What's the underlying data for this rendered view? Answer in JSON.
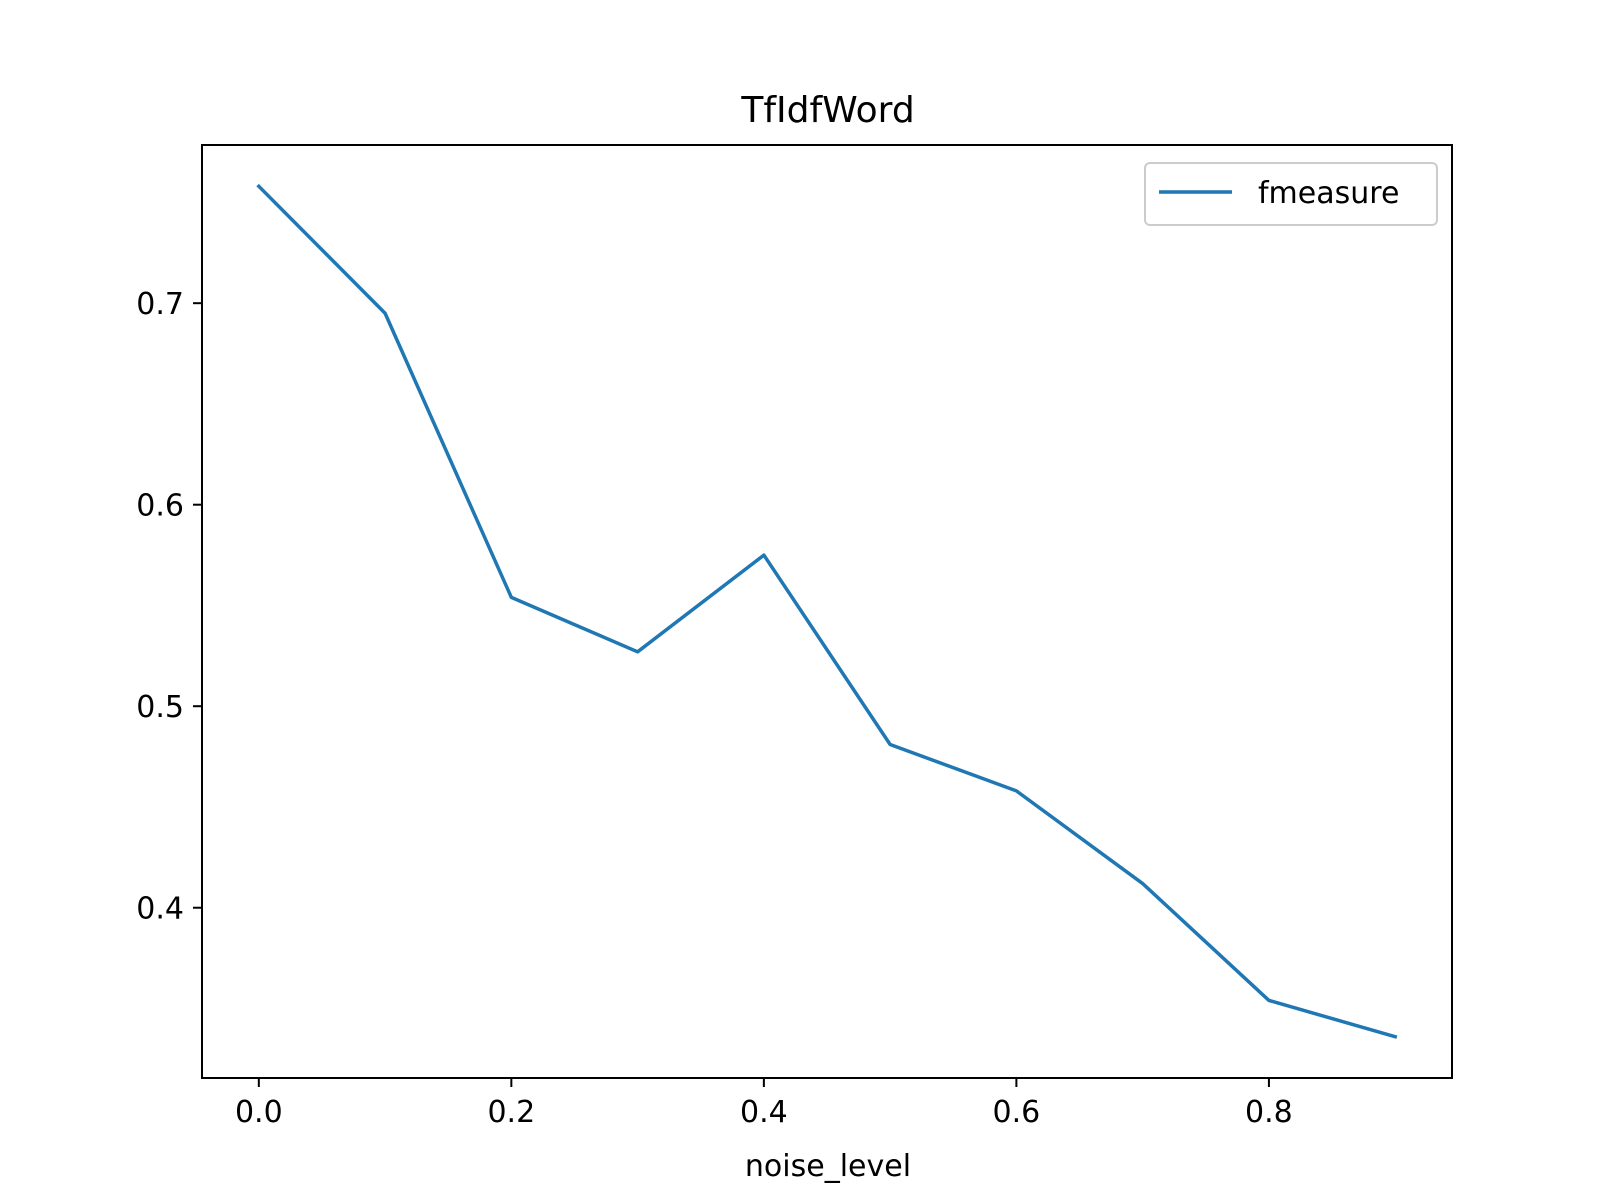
{
  "chart_data": {
    "type": "line",
    "title": "TfIdfWord",
    "xlabel": "noise_level",
    "ylabel": "",
    "x": [
      0.0,
      0.1,
      0.2,
      0.3,
      0.4,
      0.5,
      0.6,
      0.7,
      0.8,
      0.9
    ],
    "series": [
      {
        "name": "fmeasure",
        "color": "#1f77b4",
        "values": [
          0.758,
          0.695,
          0.554,
          0.527,
          0.575,
          0.481,
          0.458,
          0.412,
          0.354,
          0.336
        ]
      }
    ],
    "xlim": [
      -0.045,
      0.945
    ],
    "ylim": [
      0.3155,
      0.7785
    ],
    "xticks": [
      0.0,
      0.2,
      0.4,
      0.6,
      0.8
    ],
    "xtick_labels": [
      "0.0",
      "0.2",
      "0.4",
      "0.6",
      "0.8"
    ],
    "yticks": [
      0.4,
      0.5,
      0.6,
      0.7
    ],
    "ytick_labels": [
      "0.4",
      "0.5",
      "0.6",
      "0.7"
    ],
    "grid": false,
    "legend_position": "top-right"
  }
}
